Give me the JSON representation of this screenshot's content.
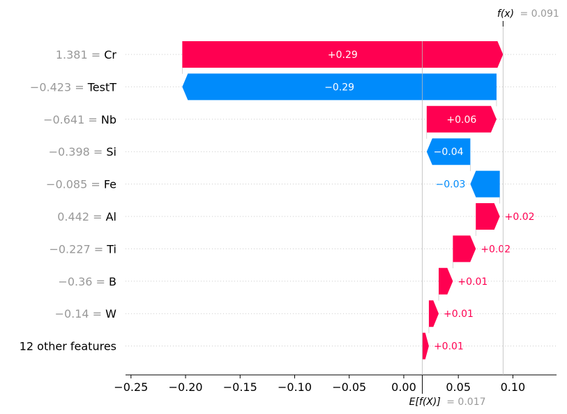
{
  "chart_data": {
    "type": "waterfall",
    "title": "",
    "xlabel": "",
    "xlim": [
      -0.255,
      0.14
    ],
    "base_value": {
      "label": "E[f(X)]",
      "value_text": "= 0.017",
      "value": 0.017
    },
    "output_value": {
      "label": "f(x)",
      "value_text": "= 0.091",
      "value": 0.091
    },
    "features": [
      {
        "value": "1.381",
        "name": "Cr",
        "contribution": 0.29,
        "label": "+0.29",
        "start": -0.203,
        "end": 0.091
      },
      {
        "value": "−0.423",
        "name": "TestT",
        "contribution": -0.29,
        "label": "−0.29",
        "start": 0.085,
        "end": -0.203
      },
      {
        "value": "−0.641",
        "name": "Nb",
        "contribution": 0.06,
        "label": "+0.06",
        "start": 0.021,
        "end": 0.085
      },
      {
        "value": "−0.398",
        "name": "Si",
        "contribution": -0.04,
        "label": "−0.04",
        "start": 0.061,
        "end": 0.021
      },
      {
        "value": "−0.085",
        "name": "Fe",
        "contribution": -0.03,
        "label": "−0.03",
        "start": 0.088,
        "end": 0.061
      },
      {
        "value": "0.442",
        "name": "Al",
        "contribution": 0.02,
        "label": "+0.02",
        "start": 0.066,
        "end": 0.088
      },
      {
        "value": "−0.227",
        "name": "Ti",
        "contribution": 0.02,
        "label": "+0.02",
        "start": 0.045,
        "end": 0.066
      },
      {
        "value": "−0.36",
        "name": "B",
        "contribution": 0.01,
        "label": "+0.01",
        "start": 0.032,
        "end": 0.045
      },
      {
        "value": "−0.14",
        "name": "W",
        "contribution": 0.01,
        "label": "+0.01",
        "start": 0.023,
        "end": 0.032
      },
      {
        "value": "",
        "name": "12 other features",
        "contribution": 0.01,
        "label": "+0.01",
        "start": 0.017,
        "end": 0.023
      }
    ],
    "xticks": [
      {
        "value": -0.25,
        "label": "−0.25"
      },
      {
        "value": -0.2,
        "label": "−0.20"
      },
      {
        "value": -0.15,
        "label": "−0.15"
      },
      {
        "value": -0.1,
        "label": "−0.10"
      },
      {
        "value": -0.05,
        "label": "−0.05"
      },
      {
        "value": 0.0,
        "label": "0.00"
      },
      {
        "value": 0.05,
        "label": "0.05"
      },
      {
        "value": 0.1,
        "label": "0.10"
      }
    ],
    "colors": {
      "positive": "#ff0051",
      "negative": "#008bfb",
      "grid": "#cccccc",
      "muted": "#999999",
      "text": "#000000"
    }
  }
}
